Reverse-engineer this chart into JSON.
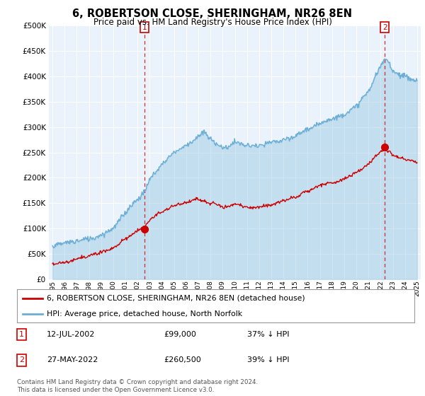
{
  "title": "6, ROBERTSON CLOSE, SHERINGHAM, NR26 8EN",
  "subtitle": "Price paid vs. HM Land Registry's House Price Index (HPI)",
  "hpi_label": "HPI: Average price, detached house, North Norfolk",
  "price_label": "6, ROBERTSON CLOSE, SHERINGHAM, NR26 8EN (detached house)",
  "footnote": "Contains HM Land Registry data © Crown copyright and database right 2024.\nThis data is licensed under the Open Government Licence v3.0.",
  "sale1_date": "12-JUL-2002",
  "sale1_price": "£99,000",
  "sale1_pct": "37% ↓ HPI",
  "sale2_date": "27-MAY-2022",
  "sale2_price": "£260,500",
  "sale2_pct": "39% ↓ HPI",
  "ylim": [
    0,
    500000
  ],
  "yticks": [
    0,
    50000,
    100000,
    150000,
    200000,
    250000,
    300000,
    350000,
    400000,
    450000,
    500000
  ],
  "hpi_color": "#6baed6",
  "hpi_fill_color": "#d6e8f5",
  "price_color": "#cc0000",
  "bg_color": "#eaf3fb",
  "sale1_year": 2002.54,
  "sale2_year": 2022.37,
  "sale1_y": 99000,
  "sale2_y": 260500,
  "xmin": 1994.7,
  "xmax": 2025.3
}
